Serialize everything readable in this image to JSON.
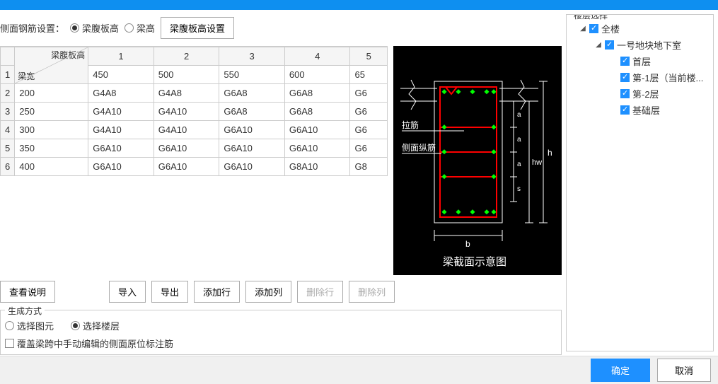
{
  "title": "",
  "settings": {
    "label": "侧面钢筋设置：",
    "option1": "梁腹板高",
    "option2": "梁高",
    "selected": 1,
    "config_btn": "梁腹板高设置"
  },
  "table": {
    "corner_top": "梁腹板高",
    "corner_bottom": "梁宽",
    "col_headers": [
      "450",
      "500",
      "550",
      "600",
      "65"
    ],
    "col_nums": [
      "1",
      "2",
      "3",
      "4",
      "5"
    ],
    "row_nums": [
      "1",
      "2",
      "3",
      "4",
      "5",
      "6"
    ],
    "row_headers": [
      "200",
      "250",
      "300",
      "350",
      "400"
    ],
    "rows": [
      [
        "G4A8",
        "G4A8",
        "G6A8",
        "G6A8",
        "G6"
      ],
      [
        "G4A10",
        "G4A10",
        "G6A8",
        "G6A8",
        "G6"
      ],
      [
        "G4A10",
        "G4A10",
        "G6A10",
        "G6A10",
        "G6"
      ],
      [
        "G6A10",
        "G6A10",
        "G6A10",
        "G6A10",
        "G6"
      ],
      [
        "G6A10",
        "G6A10",
        "G6A10",
        "G8A10",
        "G8"
      ]
    ]
  },
  "diagram": {
    "caption": "梁截面示意图",
    "label_lajin": "拉筋",
    "label_cemian": "侧面纵筋",
    "label_b": "b",
    "label_h": "h",
    "label_hw": "hw",
    "label_a": "a",
    "label_s": "s",
    "colors": {
      "beam": "#ff0000",
      "rebar": "#00ff00",
      "line": "#ffffff"
    }
  },
  "toolbar": {
    "view_desc": "查看说明",
    "import": "导入",
    "export": "导出",
    "add_row": "添加行",
    "add_col": "添加列",
    "del_row": "删除行",
    "del_col": "删除列"
  },
  "gen": {
    "legend": "生成方式",
    "opt_element": "选择图元",
    "opt_floor": "选择楼层",
    "selected": 2,
    "override_label": "覆盖梁跨中手动编辑的侧面原位标注筋"
  },
  "floors": {
    "legend": "楼层选择",
    "root": "全楼",
    "block": "一号地块地下室",
    "items": [
      "首层",
      "第-1层（当前楼...",
      "第-2层",
      "基础层"
    ]
  },
  "footer": {
    "ok": "确定",
    "cancel": "取消"
  }
}
